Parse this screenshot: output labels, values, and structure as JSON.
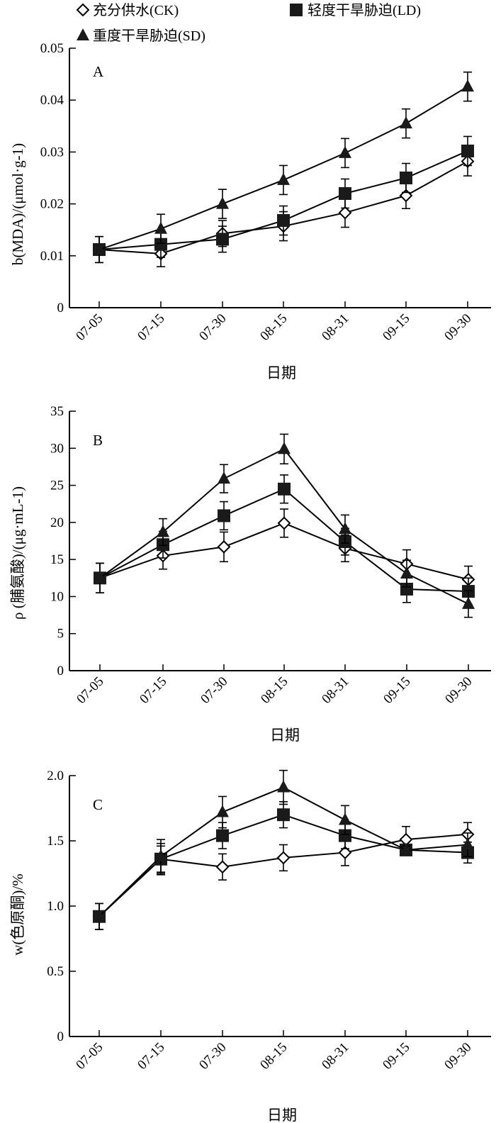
{
  "legend": {
    "items": [
      {
        "label": "充分供水(CK)",
        "marker": "diamond-open"
      },
      {
        "label": "轻度干旱胁迫(LD)",
        "marker": "square-filled"
      },
      {
        "label": "重度干旱胁迫(SD)",
        "marker": "triangle-filled"
      }
    ]
  },
  "chart_data": [
    {
      "panel": "A",
      "type": "line",
      "categories": [
        "07-05",
        "07-15",
        "07-30",
        "08-15",
        "08-31",
        "09-15",
        "09-30"
      ],
      "xlabel": "日期",
      "ylabel": "b(MDA)/(μmol·g-1)",
      "ylim": [
        0,
        0.05
      ],
      "yticks": [
        0,
        0.01,
        0.02,
        0.03,
        0.04,
        0.05
      ],
      "ytick_labels": [
        "0",
        "0.01",
        "0.02",
        "0.03",
        "0.04",
        "0.05"
      ],
      "series": [
        {
          "name": "充分供水(CK)",
          "values": [
            0.0112,
            0.0104,
            0.0143,
            0.0157,
            0.0183,
            0.0216,
            0.0282
          ],
          "errors": [
            0.0025,
            0.0025,
            0.0025,
            0.0028,
            0.0028,
            0.0025,
            0.0028
          ]
        },
        {
          "name": "轻度干旱胁迫(LD)",
          "values": [
            0.0112,
            0.0122,
            0.0132,
            0.0168,
            0.022,
            0.025,
            0.0302
          ],
          "errors": [
            0.0025,
            0.0025,
            0.0025,
            0.0028,
            0.0028,
            0.0028,
            0.0028
          ]
        },
        {
          "name": "重度干旱胁迫(SD)",
          "values": [
            0.0112,
            0.0152,
            0.02,
            0.0246,
            0.0298,
            0.0355,
            0.0426
          ],
          "errors": [
            0.0025,
            0.0028,
            0.0028,
            0.0028,
            0.0028,
            0.0028,
            0.0028
          ]
        }
      ]
    },
    {
      "panel": "B",
      "type": "line",
      "categories": [
        "07-05",
        "07-15",
        "07-30",
        "08-15",
        "08-31",
        "09-15",
        "09-30"
      ],
      "xlabel": "日期",
      "ylabel": "ρ (脯氨酸)/(μg·mL-1)",
      "ylim": [
        0,
        35
      ],
      "yticks": [
        0,
        5,
        10,
        15,
        20,
        25,
        30,
        35
      ],
      "ytick_labels": [
        "0",
        "5",
        "10",
        "15",
        "20",
        "25",
        "30",
        "35"
      ],
      "series": [
        {
          "name": "充分供水(CK)",
          "values": [
            12.5,
            15.5,
            16.7,
            19.9,
            16.5,
            14.4,
            12.3
          ],
          "errors": [
            2.0,
            1.8,
            2.0,
            1.9,
            1.8,
            1.9,
            1.8
          ]
        },
        {
          "name": "轻度干旱胁迫(LD)",
          "values": [
            12.5,
            17.0,
            20.9,
            24.5,
            17.4,
            11.0,
            10.7
          ],
          "errors": [
            2.0,
            1.8,
            1.9,
            1.9,
            1.8,
            1.8,
            1.8
          ]
        },
        {
          "name": "重度干旱胁迫(SD)",
          "values": [
            12.5,
            18.7,
            25.9,
            29.9,
            19.1,
            13.1,
            9.0
          ],
          "errors": [
            2.0,
            1.8,
            1.9,
            2.0,
            1.9,
            1.8,
            1.8
          ]
        }
      ]
    },
    {
      "panel": "C",
      "type": "line",
      "categories": [
        "07-05",
        "07-15",
        "07-30",
        "08-15",
        "08-31",
        "09-15",
        "09-30"
      ],
      "xlabel": "日期",
      "ylabel": "w(色原酮)/%",
      "ylim": [
        0,
        2.0
      ],
      "yticks": [
        0,
        0.5,
        1.0,
        1.5,
        2.0
      ],
      "ytick_labels": [
        "0",
        "0.5",
        "1.0",
        "1.5",
        "2.0"
      ],
      "series": [
        {
          "name": "充分供水(CK)",
          "values": [
            0.92,
            1.36,
            1.3,
            1.37,
            1.41,
            1.51,
            1.55
          ],
          "errors": [
            0.1,
            0.1,
            0.1,
            0.1,
            0.1,
            0.1,
            0.09
          ]
        },
        {
          "name": "轻度干旱胁迫(LD)",
          "values": [
            0.92,
            1.36,
            1.54,
            1.7,
            1.54,
            1.43,
            1.41
          ],
          "errors": [
            0.1,
            0.12,
            0.1,
            0.1,
            0.1,
            0.03,
            0.08
          ]
        },
        {
          "name": "重度干旱胁迫(SD)",
          "values": [
            0.92,
            1.38,
            1.72,
            1.91,
            1.66,
            1.43,
            1.47
          ],
          "errors": [
            0.1,
            0.13,
            0.12,
            0.13,
            0.11,
            0.03,
            0.09
          ]
        }
      ]
    }
  ]
}
